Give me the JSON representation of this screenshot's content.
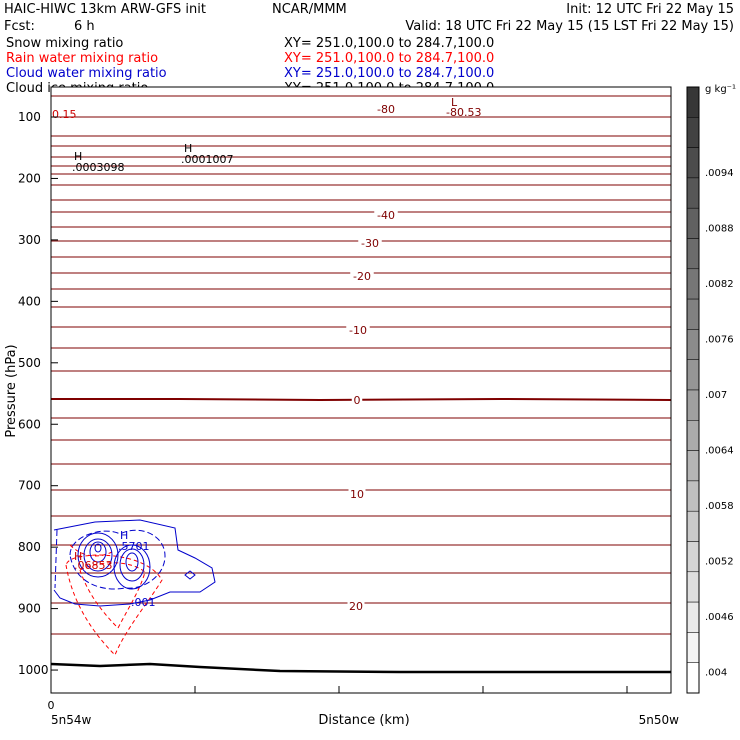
{
  "header": {
    "model_title": "HAIC-HIWC 13km ARW-GFS init",
    "center": "NCAR/MMM",
    "init_text": "Init: 12 UTC Fri 22 May 15",
    "fcst_label": "Fcst:",
    "fcst_value": "6 h",
    "valid_text": "Valid: 18 UTC Fri 22 May 15 (15 LST Fri 22 May 15)"
  },
  "legend": [
    {
      "label": "Snow mixing ratio",
      "xy": "XY= 251.0,100.0 to 284.7,100.0",
      "color": "#000000"
    },
    {
      "label": "Rain water mixing ratio",
      "xy": "XY= 251.0,100.0 to 284.7,100.0",
      "color": "#ff0000"
    },
    {
      "label": "Cloud water mixing ratio",
      "xy": "XY= 251.0,100.0 to 284.7,100.0",
      "color": "#0000cc"
    },
    {
      "label": "Cloud ice mixing ratio",
      "xy": "XY= 251.0,100.0 to 284.7,100.0",
      "color": "#000000"
    }
  ],
  "chart_data": {
    "type": "contour",
    "xlabel": "Distance (km)",
    "ylabel": "Pressure (hPa)",
    "x_ticks": [
      "0"
    ],
    "x_ends": [
      "5n54w",
      "5n50w"
    ],
    "y_ticks": [
      100,
      200,
      300,
      400,
      500,
      600,
      700,
      800,
      900,
      1000
    ],
    "temperature_labels": [
      "-80",
      "-40",
      "-30",
      "-20",
      "-10",
      "0",
      "10",
      "20"
    ],
    "annotations": [
      {
        "text": "0.15",
        "color": "#cc0000"
      },
      {
        "text": "L",
        "color": "#800000"
      },
      {
        "text": "-80.53",
        "color": "#800000"
      },
      {
        "text": "H",
        "color": "#000000"
      },
      {
        "text": ".0003098",
        "color": "#000000"
      },
      {
        "text": "H",
        "color": "#000000"
      },
      {
        "text": ".0001007",
        "color": "#000000"
      },
      {
        "text": "H",
        "color": "#0000cc"
      },
      {
        "text": ".5701",
        "color": "#0000cc"
      },
      {
        "text": "H",
        "color": "#cc0000"
      },
      {
        "text": ".06853",
        "color": "#cc0000"
      },
      {
        "text": ".001",
        "color": "#0000cc"
      }
    ],
    "colorbar": {
      "units": "g kg⁻¹",
      "labels": [
        ".0094",
        ".0088",
        ".0082",
        ".0076",
        ".007",
        ".0064",
        ".0058",
        ".0052",
        ".0046",
        ".004"
      ]
    },
    "colors": {
      "isotherm": "#7f0000",
      "cloud_water": "#0000cc",
      "rain_water": "#ff0000",
      "terrain": "#000000"
    }
  }
}
